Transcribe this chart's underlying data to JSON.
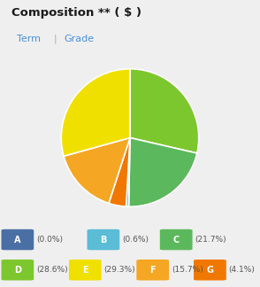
{
  "title": "Composition ** ( $ )",
  "subtitle_term": "Term",
  "subtitle_grade": "Grade",
  "background_color": "#efefef",
  "pie_slices": [
    {
      "label": "D",
      "value": 28.6,
      "color": "#7dc72e"
    },
    {
      "label": "C",
      "value": 21.7,
      "color": "#5cb85c"
    },
    {
      "label": "B",
      "value": 0.6,
      "color": "#5bbcd6"
    },
    {
      "label": "G",
      "value": 4.1,
      "color": "#f07800"
    },
    {
      "label": "F",
      "value": 15.7,
      "color": "#f5a623"
    },
    {
      "label": "E",
      "value": 29.3,
      "color": "#f0e000"
    },
    {
      "label": "A",
      "value": 0.001,
      "color": "#4a6fa5"
    }
  ],
  "legend_colors": {
    "A": "#4a6fa5",
    "B": "#5bbcd6",
    "C": "#5cb85c",
    "D": "#7dc72e",
    "E": "#f0e000",
    "F": "#f5a623",
    "G": "#f07800"
  },
  "legend_labels": {
    "A": "(0.0%)",
    "B": "(0.6%)",
    "C": "(21.7%)",
    "D": "(28.6%)",
    "E": "(29.3%)",
    "F": "(15.7%)",
    "G": "(4.1%)"
  },
  "wedge_edge_color": "white",
  "wedge_linewidth": 1.2,
  "start_angle": 90,
  "fig_bg": "#efefef",
  "chart_bg": "#efefef"
}
